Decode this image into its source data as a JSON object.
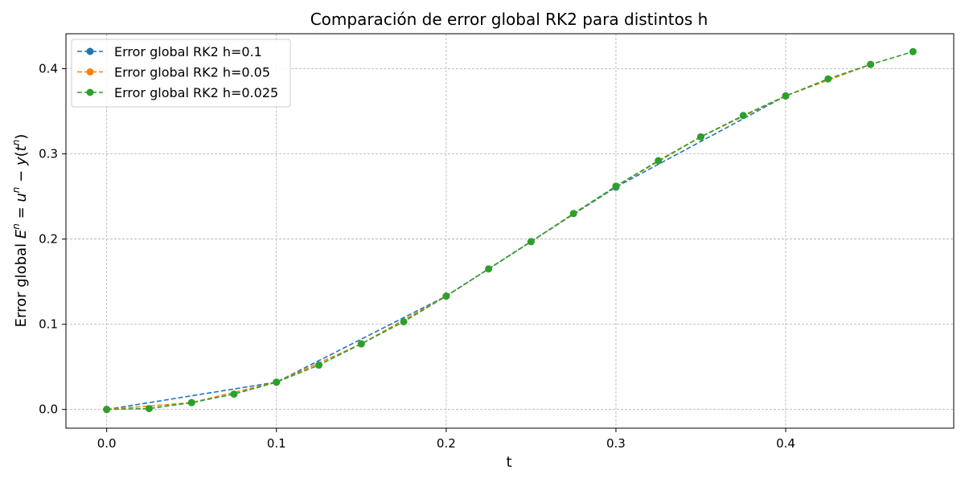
{
  "chart_data": {
    "type": "line",
    "title": "Comparación de error global RK2 para distintos h",
    "xlabel": "t",
    "ylabel": "Error global E^n = u^n − y(t^n)",
    "xlim": [
      -0.024,
      0.499
    ],
    "ylim": [
      -0.022,
      0.441
    ],
    "x_ticks": [
      0.0,
      0.1,
      0.2,
      0.3,
      0.4
    ],
    "y_ticks": [
      0.0,
      0.1,
      0.2,
      0.3,
      0.4
    ],
    "x_tick_labels": [
      "0.0",
      "0.1",
      "0.2",
      "0.3",
      "0.4"
    ],
    "y_tick_labels": [
      "0.0",
      "0.1",
      "0.2",
      "0.3",
      "0.4"
    ],
    "grid": true,
    "legend_position": "top-left",
    "series": [
      {
        "name": "Error global RK2 h=0.1",
        "color": "#1f77b4",
        "line_style": "dashed",
        "marker": "circle",
        "x": [
          0.0,
          0.1,
          0.2,
          0.3,
          0.4
        ],
        "y": [
          0.0,
          0.032,
          0.133,
          0.261,
          0.368
        ]
      },
      {
        "name": "Error global RK2 h=0.05",
        "color": "#ff7f0e",
        "line_style": "dashed",
        "marker": "circle",
        "x": [
          0.0,
          0.05,
          0.1,
          0.15,
          0.2,
          0.25,
          0.3,
          0.35,
          0.4,
          0.45
        ],
        "y": [
          0.0,
          0.008,
          0.032,
          0.077,
          0.133,
          0.197,
          0.262,
          0.32,
          0.368,
          0.405
        ]
      },
      {
        "name": "Error global RK2 h=0.025",
        "color": "#2ca02c",
        "line_style": "dashed",
        "marker": "circle",
        "x": [
          0.0,
          0.025,
          0.05,
          0.075,
          0.1,
          0.125,
          0.15,
          0.175,
          0.2,
          0.225,
          0.25,
          0.275,
          0.3,
          0.325,
          0.35,
          0.375,
          0.4,
          0.425,
          0.45,
          0.475
        ],
        "y": [
          0.0,
          0.001,
          0.008,
          0.018,
          0.032,
          0.052,
          0.077,
          0.103,
          0.133,
          0.165,
          0.197,
          0.23,
          0.262,
          0.292,
          0.32,
          0.345,
          0.368,
          0.388,
          0.405,
          0.42
        ]
      }
    ]
  }
}
